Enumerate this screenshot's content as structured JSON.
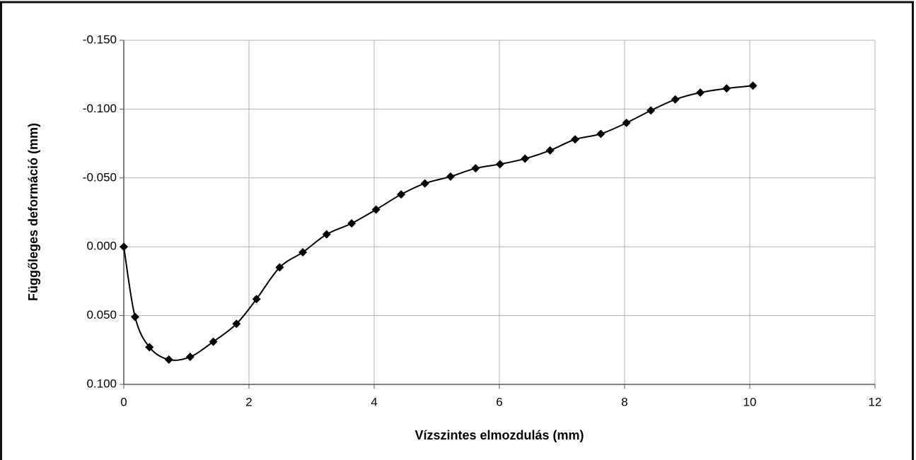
{
  "chart_data": {
    "type": "line",
    "x_label": "Vízszintes elmozdulás (mm)",
    "y_label": "Függőleges deformáció (mm)",
    "x": [
      0,
      0.18,
      0.41,
      0.72,
      1.06,
      1.43,
      1.8,
      2.12,
      2.49,
      2.86,
      3.24,
      3.64,
      4.03,
      4.43,
      4.81,
      5.22,
      5.62,
      6.01,
      6.41,
      6.81,
      7.21,
      7.62,
      8.03,
      8.42,
      8.81,
      9.21,
      9.63,
      10.05
    ],
    "series": [
      {
        "color": "#000000",
        "marker": "diamond",
        "values": [
          0,
          0.051,
          0.073,
          0.082,
          0.08,
          0.069,
          0.056,
          0.038,
          0.015,
          0.004,
          -0.009,
          -0.017,
          -0.027,
          -0.038,
          -0.046,
          -0.051,
          -0.057,
          -0.06,
          -0.064,
          -0.07,
          -0.078,
          -0.082,
          -0.09,
          -0.099,
          -0.107,
          -0.112,
          -0.115,
          -0.117
        ]
      }
    ],
    "xlim": [
      0,
      12
    ],
    "xticks": [
      0,
      2,
      4,
      6,
      8,
      10,
      12
    ],
    "ylim": [
      -0.15,
      0.1
    ],
    "y_inverted": true,
    "yticks": [
      {
        "value": -0.15,
        "label": "-0.150"
      },
      {
        "value": -0.1,
        "label": "-0.100"
      },
      {
        "value": -0.05,
        "label": "-0.050"
      },
      {
        "value": 0,
        "label": "0.000"
      },
      {
        "value": 0.05,
        "label": "0.050"
      },
      {
        "value": 0.1,
        "label": "0.100"
      }
    ],
    "grid": true
  }
}
